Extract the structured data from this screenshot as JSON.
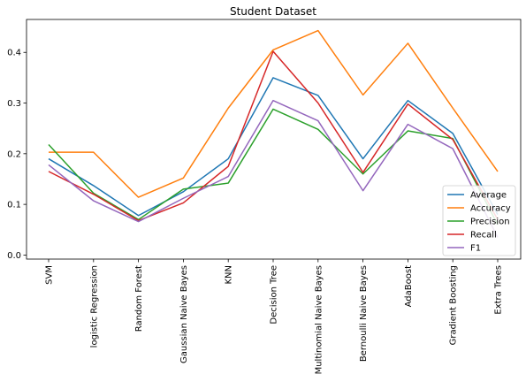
{
  "chart_data": {
    "type": "line",
    "title": "Student Dataset",
    "xlabel": "",
    "ylabel": "",
    "categories": [
      "SVM",
      "logistic Regression",
      "Random Forest",
      "Gaussian Naive Bayes",
      "KNN",
      "Decision Tree",
      "Multinomial Naive Bayes",
      "Bernoulli Naive Bayes",
      "AdaBoost",
      "Gradient Boosting",
      "Extra Trees"
    ],
    "ylim": [
      -0.008,
      0.465
    ],
    "yticks": [
      0.0,
      0.1,
      0.2,
      0.3,
      0.4
    ],
    "ytick_labels": [
      "0.0",
      "0.1",
      "0.2",
      "0.3",
      "0.4"
    ],
    "grid": false,
    "legend_position": "lower-right",
    "series": [
      {
        "name": "Average",
        "color": "#1f77b4",
        "values": [
          0.19,
          0.137,
          0.078,
          0.125,
          0.19,
          0.35,
          0.315,
          0.19,
          0.305,
          0.24,
          0.08
        ]
      },
      {
        "name": "Accuracy",
        "color": "#ff7f0e",
        "values": [
          0.203,
          0.203,
          0.114,
          0.152,
          0.29,
          0.405,
          0.443,
          0.316,
          0.418,
          0.29,
          0.165
        ]
      },
      {
        "name": "Precision",
        "color": "#2ca02c",
        "values": [
          0.218,
          0.122,
          0.07,
          0.13,
          0.142,
          0.288,
          0.248,
          0.16,
          0.245,
          0.23,
          0.06
        ]
      },
      {
        "name": "Recall",
        "color": "#d62728",
        "values": [
          0.165,
          0.12,
          0.068,
          0.103,
          0.175,
          0.402,
          0.3,
          0.163,
          0.298,
          0.228,
          0.07
        ]
      },
      {
        "name": "F1",
        "color": "#9467bd",
        "values": [
          0.178,
          0.107,
          0.066,
          0.112,
          0.155,
          0.305,
          0.265,
          0.127,
          0.258,
          0.21,
          0.035
        ]
      }
    ]
  }
}
